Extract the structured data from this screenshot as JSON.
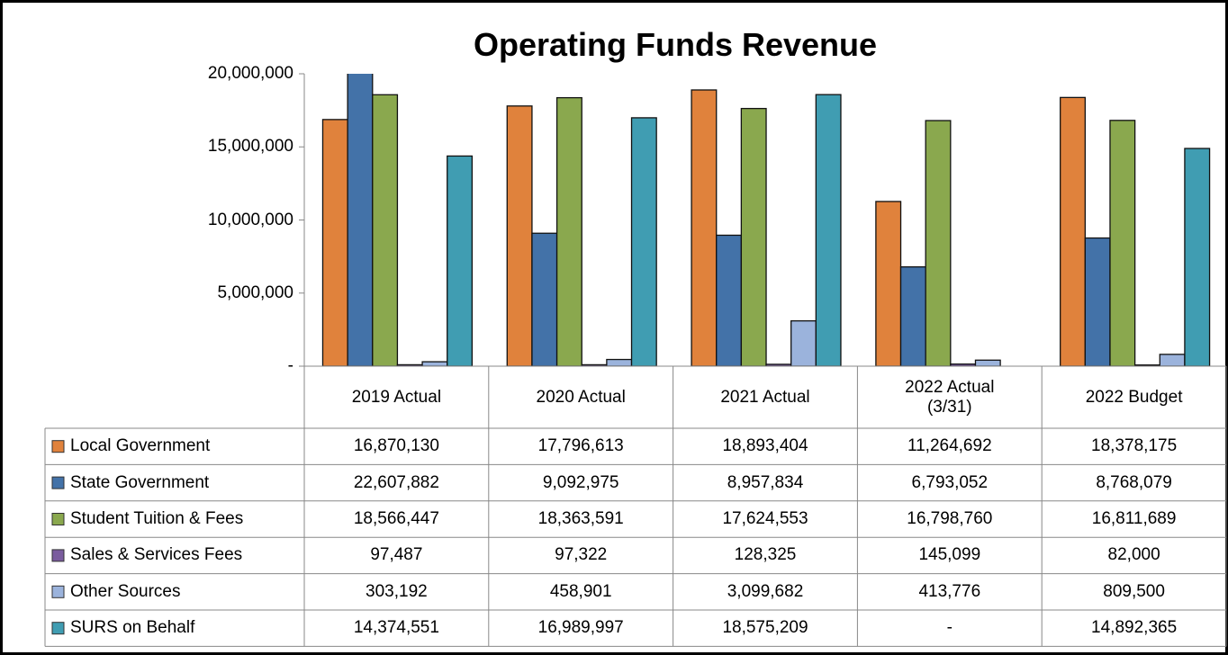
{
  "chart_data": {
    "type": "bar",
    "title": "Operating Funds Revenue",
    "categories": [
      "2019 Actual",
      "2020 Actual",
      "2021 Actual",
      "2022 Actual (3/31)",
      "2022 Budget"
    ],
    "series": [
      {
        "name": "Local Government",
        "color": "#e0823c",
        "values": [
          16870130,
          17796613,
          18893404,
          11264692,
          18378175
        ],
        "value_labels": [
          "16,870,130",
          "17,796,613",
          "18,893,404",
          "11,264,692",
          "18,378,175"
        ]
      },
      {
        "name": "State Government",
        "color": "#4372a8",
        "values": [
          22607882,
          9092975,
          8957834,
          6793052,
          8768079
        ],
        "value_labels": [
          "22,607,882",
          "9,092,975",
          "8,957,834",
          "6,793,052",
          "8,768,079"
        ]
      },
      {
        "name": "Student Tuition & Fees",
        "color": "#8aa84e",
        "values": [
          18566447,
          18363591,
          17624553,
          16798760,
          16811689
        ],
        "value_labels": [
          "18,566,447",
          "18,363,591",
          "17,624,553",
          "16,798,760",
          "16,811,689"
        ]
      },
      {
        "name": "Sales & Services Fees",
        "color": "#7a5c9e",
        "values": [
          97487,
          97322,
          128325,
          145099,
          82000
        ],
        "value_labels": [
          "97,487",
          "97,322",
          "128,325",
          "145,099",
          "82,000"
        ]
      },
      {
        "name": "Other Sources",
        "color": "#9bb3dc",
        "values": [
          303192,
          458901,
          3099682,
          413776,
          809500
        ],
        "value_labels": [
          "303,192",
          "458,901",
          "3,099,682",
          "413,776",
          "809,500"
        ]
      },
      {
        "name": "SURS on Behalf",
        "color": "#409db2",
        "values": [
          14374551,
          16989997,
          18575209,
          null,
          14892365
        ],
        "value_labels": [
          "14,374,551",
          "16,989,997",
          "18,575,209",
          "-",
          "14,892,365"
        ]
      }
    ],
    "ylim": [
      0,
      20000000
    ],
    "yticks": [
      {
        "value": 0,
        "label": "-"
      },
      {
        "value": 5000000,
        "label": "5,000,000"
      },
      {
        "value": 10000000,
        "label": "10,000,000"
      },
      {
        "value": 15000000,
        "label": "15,000,000"
      },
      {
        "value": 20000000,
        "label": "20,000,000"
      }
    ],
    "grid": false
  }
}
